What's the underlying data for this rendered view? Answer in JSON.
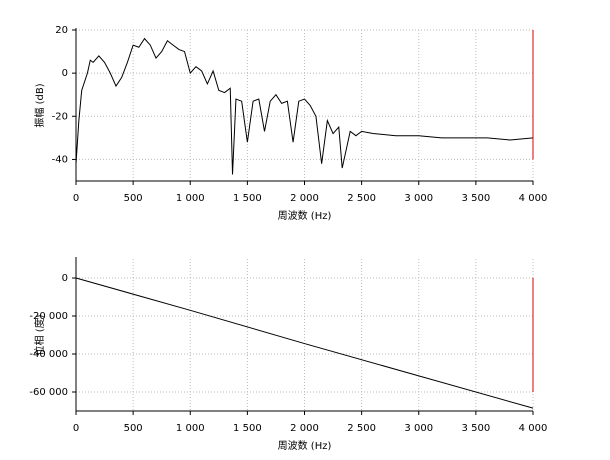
{
  "chart_data": [
    {
      "type": "line",
      "ylabel": "振幅 (dB)",
      "xlabel": "周波数 (Hz)",
      "xlim": [
        0,
        4000
      ],
      "ylim": [
        -50,
        20
      ],
      "xticks": [
        0,
        500,
        {
          "value": 1000,
          "label": "1 000"
        },
        {
          "value": 1500,
          "label": "1 500"
        },
        {
          "value": 2000,
          "label": "2 000"
        },
        {
          "value": 2500,
          "label": "2 500"
        },
        {
          "value": 3000,
          "label": "3 000"
        },
        {
          "value": 3500,
          "label": "3 500"
        },
        {
          "value": 4000,
          "label": "4 000"
        }
      ],
      "yticks": [
        -40,
        -20,
        0,
        20
      ],
      "grid": true,
      "x": [
        0,
        25,
        50,
        100,
        125,
        150,
        200,
        250,
        300,
        350,
        400,
        450,
        500,
        550,
        600,
        650,
        700,
        750,
        800,
        850,
        900,
        950,
        1000,
        1050,
        1100,
        1150,
        1200,
        1250,
        1300,
        1350,
        1370,
        1400,
        1450,
        1500,
        1550,
        1600,
        1650,
        1700,
        1750,
        1800,
        1850,
        1900,
        1950,
        2000,
        2050,
        2100,
        2150,
        2200,
        2250,
        2300,
        2330,
        2400,
        2450,
        2500,
        2600,
        2800,
        3000,
        3200,
        3400,
        3600,
        3800,
        4000
      ],
      "series": [
        {
          "color": "#000000",
          "values": [
            -42,
            -22,
            -8,
            0,
            6,
            5,
            8,
            5,
            0,
            -6,
            -2,
            5,
            13,
            12,
            16,
            13,
            7,
            10,
            15,
            13,
            11,
            10,
            0,
            3,
            1,
            -5,
            1,
            -8,
            -9,
            -7,
            -47,
            -12,
            -13,
            -32,
            -13,
            -12,
            -27,
            -13,
            -10,
            -14,
            -13,
            -32,
            -13,
            -12,
            -15,
            -20,
            -42,
            -22,
            -28,
            -25,
            -44,
            -27,
            -29,
            -27,
            -28,
            -29,
            -29,
            -30,
            -30,
            -30,
            -31,
            -30
          ]
        }
      ],
      "vline": {
        "x": 4000,
        "ymin": -40,
        "ymax": 20,
        "color": "#e00000"
      }
    },
    {
      "type": "line",
      "ylabel": "位相 (度)",
      "xlabel": "周波数 (Hz)",
      "xlim": [
        0,
        4000
      ],
      "ylim": [
        -70000,
        10000
      ],
      "xticks": [
        0,
        500,
        {
          "value": 1000,
          "label": "1 000"
        },
        {
          "value": 1500,
          "label": "1 500"
        },
        {
          "value": 2000,
          "label": "2 000"
        },
        {
          "value": 2500,
          "label": "2 500"
        },
        {
          "value": 3000,
          "label": "3 000"
        },
        {
          "value": 3500,
          "label": "3 500"
        },
        {
          "value": 4000,
          "label": "4 000"
        }
      ],
      "yticks": [
        0,
        {
          "value": -20000,
          "label": "-20 000"
        },
        {
          "value": -40000,
          "label": "-40 000"
        },
        {
          "value": -60000,
          "label": "-60 000"
        }
      ],
      "grid": true,
      "x": [
        0,
        1000,
        2000,
        3000,
        4000
      ],
      "series": [
        {
          "color": "#000000",
          "values": [
            0,
            -17000,
            -34500,
            -51500,
            -68500
          ]
        }
      ],
      "vline": {
        "x": 4000,
        "ymin": -60000,
        "ymax": 0,
        "color": "#e00000"
      }
    }
  ]
}
